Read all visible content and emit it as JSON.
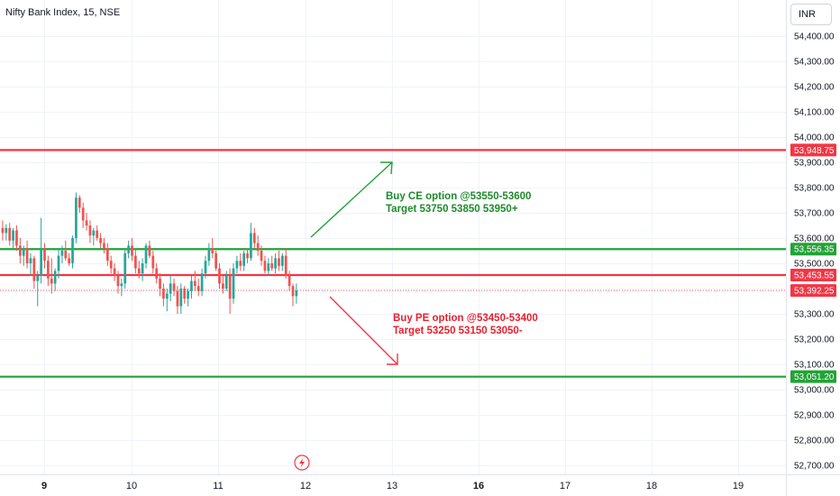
{
  "header": {
    "symbol_title": "Nifty Bank Index, 15, NSE",
    "currency": "INR"
  },
  "colors": {
    "bull": "#26a69a",
    "bear": "#ef5350",
    "level_red": "#f23645",
    "level_green": "#22a336",
    "annotation_green": "#1e8a2c",
    "annotation_red": "#e8202f",
    "current_price": "#f23645",
    "grid": "#f0f3fa",
    "axis_text": "#131722"
  },
  "chart_data": {
    "type": "candlestick",
    "symbol": "Nifty Bank Index",
    "interval": "15",
    "exchange": "NSE",
    "currency": "INR",
    "ylim": [
      52650,
      54475
    ],
    "y_ticks": [
      "54,400.00",
      "54,300.00",
      "54,200.00",
      "54,100.00",
      "54,000.00",
      "53,900.00",
      "53,800.00",
      "53,700.00",
      "53,600.00",
      "53,500.00",
      "53,400.00",
      "53,300.00",
      "53,200.00",
      "53,100.00",
      "53,000.00",
      "52,900.00",
      "52,800.00",
      "52,700.00"
    ],
    "y_tick_values": [
      54400,
      54300,
      54200,
      54100,
      54000,
      53900,
      53800,
      53700,
      53600,
      53500,
      53400,
      53300,
      53200,
      53100,
      53000,
      52900,
      52800,
      52700
    ],
    "x_labels": [
      {
        "label": "9",
        "bold": true
      },
      {
        "label": "10",
        "bold": false
      },
      {
        "label": "11",
        "bold": false
      },
      {
        "label": "12",
        "bold": false
      },
      {
        "label": "13",
        "bold": false
      },
      {
        "label": "16",
        "bold": true
      },
      {
        "label": "17",
        "bold": false
      },
      {
        "label": "18",
        "bold": false
      },
      {
        "label": "19",
        "bold": false
      }
    ],
    "session_bars": 25,
    "candles": [
      {
        "o": 53640,
        "h": 53670,
        "l": 53590,
        "c": 53620
      },
      {
        "o": 53620,
        "h": 53655,
        "l": 53590,
        "c": 53640
      },
      {
        "o": 53640,
        "h": 53660,
        "l": 53570,
        "c": 53590
      },
      {
        "o": 53590,
        "h": 53640,
        "l": 53560,
        "c": 53630
      },
      {
        "o": 53630,
        "h": 53650,
        "l": 53550,
        "c": 53570
      },
      {
        "o": 53570,
        "h": 53600,
        "l": 53500,
        "c": 53530
      },
      {
        "o": 53530,
        "h": 53570,
        "l": 53490,
        "c": 53560
      },
      {
        "o": 53560,
        "h": 53590,
        "l": 53480,
        "c": 53500
      },
      {
        "o": 53500,
        "h": 53540,
        "l": 53450,
        "c": 53520
      },
      {
        "o": 53520,
        "h": 53530,
        "l": 53400,
        "c": 53430
      },
      {
        "o": 53430,
        "h": 53470,
        "l": 53330,
        "c": 53450
      },
      {
        "o": 53450,
        "h": 53680,
        "l": 53420,
        "c": 53560
      },
      {
        "o": 53560,
        "h": 53580,
        "l": 53480,
        "c": 53510
      },
      {
        "o": 53510,
        "h": 53530,
        "l": 53410,
        "c": 53440
      },
      {
        "o": 53440,
        "h": 53520,
        "l": 53380,
        "c": 53420
      },
      {
        "o": 53420,
        "h": 53480,
        "l": 53390,
        "c": 53470
      },
      {
        "o": 53470,
        "h": 53560,
        "l": 53440,
        "c": 53530
      },
      {
        "o": 53530,
        "h": 53570,
        "l": 53500,
        "c": 53550
      },
      {
        "o": 53550,
        "h": 53590,
        "l": 53510,
        "c": 53520
      },
      {
        "o": 53520,
        "h": 53540,
        "l": 53490,
        "c": 53500
      },
      {
        "o": 53500,
        "h": 53610,
        "l": 53480,
        "c": 53600
      },
      {
        "o": 53600,
        "h": 53780,
        "l": 53580,
        "c": 53760
      },
      {
        "o": 53760,
        "h": 53770,
        "l": 53700,
        "c": 53720
      },
      {
        "o": 53720,
        "h": 53740,
        "l": 53640,
        "c": 53670
      },
      {
        "o": 53670,
        "h": 53700,
        "l": 53630,
        "c": 53650
      },
      {
        "o": 53650,
        "h": 53670,
        "l": 53580,
        "c": 53610
      },
      {
        "o": 53610,
        "h": 53640,
        "l": 53570,
        "c": 53630
      },
      {
        "o": 53630,
        "h": 53650,
        "l": 53590,
        "c": 53600
      },
      {
        "o": 53600,
        "h": 53620,
        "l": 53560,
        "c": 53580
      },
      {
        "o": 53580,
        "h": 53600,
        "l": 53540,
        "c": 53560
      },
      {
        "o": 53560,
        "h": 53580,
        "l": 53490,
        "c": 53510
      },
      {
        "o": 53510,
        "h": 53530,
        "l": 53460,
        "c": 53480
      },
      {
        "o": 53480,
        "h": 53500,
        "l": 53430,
        "c": 53450
      },
      {
        "o": 53450,
        "h": 53470,
        "l": 53380,
        "c": 53410
      },
      {
        "o": 53410,
        "h": 53440,
        "l": 53370,
        "c": 53420
      },
      {
        "o": 53420,
        "h": 53560,
        "l": 53400,
        "c": 53540
      },
      {
        "o": 53540,
        "h": 53590,
        "l": 53520,
        "c": 53570
      },
      {
        "o": 53570,
        "h": 53600,
        "l": 53510,
        "c": 53530
      },
      {
        "o": 53530,
        "h": 53560,
        "l": 53460,
        "c": 53480
      },
      {
        "o": 53480,
        "h": 53510,
        "l": 53440,
        "c": 53460
      },
      {
        "o": 53460,
        "h": 53520,
        "l": 53430,
        "c": 53500
      },
      {
        "o": 53500,
        "h": 53580,
        "l": 53480,
        "c": 53570
      },
      {
        "o": 53570,
        "h": 53590,
        "l": 53520,
        "c": 53530
      },
      {
        "o": 53530,
        "h": 53550,
        "l": 53460,
        "c": 53480
      },
      {
        "o": 53480,
        "h": 53500,
        "l": 53420,
        "c": 53440
      },
      {
        "o": 53440,
        "h": 53460,
        "l": 53370,
        "c": 53400
      },
      {
        "o": 53400,
        "h": 53420,
        "l": 53330,
        "c": 53360
      },
      {
        "o": 53360,
        "h": 53400,
        "l": 53310,
        "c": 53380
      },
      {
        "o": 53380,
        "h": 53450,
        "l": 53350,
        "c": 53420
      },
      {
        "o": 53420,
        "h": 53440,
        "l": 53370,
        "c": 53390
      },
      {
        "o": 53390,
        "h": 53410,
        "l": 53300,
        "c": 53330
      },
      {
        "o": 53330,
        "h": 53420,
        "l": 53300,
        "c": 53400
      },
      {
        "o": 53400,
        "h": 53410,
        "l": 53340,
        "c": 53360
      },
      {
        "o": 53360,
        "h": 53400,
        "l": 53330,
        "c": 53390
      },
      {
        "o": 53390,
        "h": 53450,
        "l": 53360,
        "c": 53430
      },
      {
        "o": 53430,
        "h": 53470,
        "l": 53390,
        "c": 53410
      },
      {
        "o": 53410,
        "h": 53440,
        "l": 53370,
        "c": 53390
      },
      {
        "o": 53390,
        "h": 53480,
        "l": 53370,
        "c": 53460
      },
      {
        "o": 53460,
        "h": 53530,
        "l": 53440,
        "c": 53510
      },
      {
        "o": 53510,
        "h": 53580,
        "l": 53490,
        "c": 53560
      },
      {
        "o": 53560,
        "h": 53600,
        "l": 53520,
        "c": 53540
      },
      {
        "o": 53540,
        "h": 53550,
        "l": 53470,
        "c": 53480
      },
      {
        "o": 53480,
        "h": 53500,
        "l": 53400,
        "c": 53420
      },
      {
        "o": 53420,
        "h": 53450,
        "l": 53380,
        "c": 53400
      },
      {
        "o": 53400,
        "h": 53470,
        "l": 53390,
        "c": 53450
      },
      {
        "o": 53450,
        "h": 53480,
        "l": 53300,
        "c": 53360
      },
      {
        "o": 53360,
        "h": 53500,
        "l": 53340,
        "c": 53480
      },
      {
        "o": 53480,
        "h": 53530,
        "l": 53460,
        "c": 53510
      },
      {
        "o": 53510,
        "h": 53540,
        "l": 53470,
        "c": 53490
      },
      {
        "o": 53490,
        "h": 53550,
        "l": 53470,
        "c": 53540
      },
      {
        "o": 53540,
        "h": 53560,
        "l": 53500,
        "c": 53520
      },
      {
        "o": 53520,
        "h": 53660,
        "l": 53510,
        "c": 53620
      },
      {
        "o": 53620,
        "h": 53640,
        "l": 53560,
        "c": 53580
      },
      {
        "o": 53580,
        "h": 53610,
        "l": 53530,
        "c": 53550
      },
      {
        "o": 53550,
        "h": 53570,
        "l": 53490,
        "c": 53510
      },
      {
        "o": 53510,
        "h": 53530,
        "l": 53460,
        "c": 53470
      },
      {
        "o": 53470,
        "h": 53520,
        "l": 53450,
        "c": 53500
      },
      {
        "o": 53500,
        "h": 53530,
        "l": 53470,
        "c": 53480
      },
      {
        "o": 53480,
        "h": 53540,
        "l": 53460,
        "c": 53520
      },
      {
        "o": 53520,
        "h": 53550,
        "l": 53470,
        "c": 53490
      },
      {
        "o": 53490,
        "h": 53540,
        "l": 53470,
        "c": 53530
      },
      {
        "o": 53530,
        "h": 53560,
        "l": 53440,
        "c": 53450
      },
      {
        "o": 53450,
        "h": 53470,
        "l": 53390,
        "c": 53410
      },
      {
        "o": 53410,
        "h": 53420,
        "l": 53330,
        "c": 53370
      },
      {
        "o": 53370,
        "h": 53420,
        "l": 53340,
        "c": 53392.25
      }
    ],
    "levels": [
      {
        "value": 53948.75,
        "label": "53,948.75",
        "color": "#f23645"
      },
      {
        "value": 53556.35,
        "label": "53,556.35",
        "color": "#22a336"
      },
      {
        "value": 53453.55,
        "label": "53,453.55",
        "color": "#f23645"
      },
      {
        "value": 53051.2,
        "label": "53,051.20",
        "color": "#22a336"
      }
    ],
    "current_price": {
      "value": 53392.25,
      "label": "53,392.25"
    },
    "annotations": [
      {
        "line1": "Buy CE option @53550-53600",
        "line2": "Target 53750 53850 53950+",
        "color": "#1e8a2c",
        "direction": "up"
      },
      {
        "line1": "Buy PE option @53450-53400",
        "line2": "Target 53250 53150 53050-",
        "color": "#e8202f",
        "direction": "down"
      }
    ],
    "grid": true
  },
  "icons": {
    "flash_marker": "lightning-bolt-icon"
  }
}
